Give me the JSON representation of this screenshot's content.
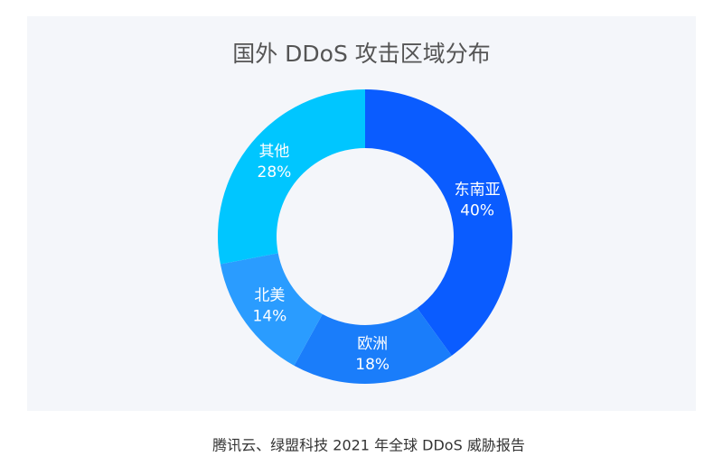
{
  "chart_data": {
    "type": "donut",
    "title": "国外 DDoS 攻击区域分布",
    "categories": [
      "东南亚",
      "欧洲",
      "北美",
      "其他"
    ],
    "values": [
      40,
      18,
      14,
      28
    ],
    "value_labels": [
      "40%",
      "18%",
      "14%",
      "28%"
    ],
    "colors": [
      "#0a5cff",
      "#1a7dfa",
      "#2a9cff",
      "#00c6ff"
    ]
  },
  "caption": "腾讯云、绿盟科技 2021 年全球 DDoS 威胁报告"
}
